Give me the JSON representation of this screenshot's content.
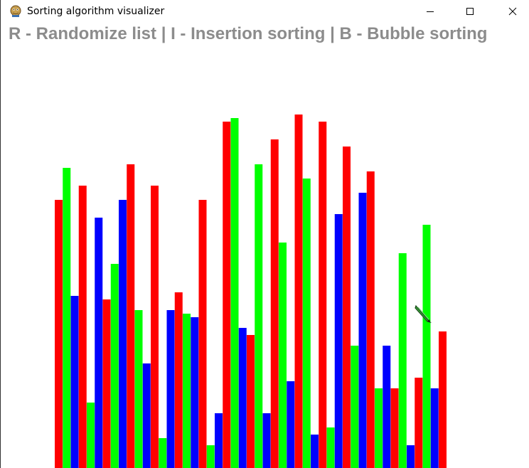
{
  "window": {
    "title": "Sorting algorithm visualizer",
    "icon": "python-snake-icon"
  },
  "controls": {
    "minimize": "minimize-icon",
    "maximize": "maximize-icon",
    "close": "close-icon"
  },
  "instructions": "R - Randomize list | I - Insertion sorting | B - Bubble sorting",
  "colors": {
    "bar_colors": [
      "#ff0000",
      "#00ff00",
      "#0000ff"
    ],
    "instruction_text": "#8c8c8c"
  },
  "cursor": {
    "icon": "pencil-cursor-icon"
  },
  "chart_data": {
    "type": "bar",
    "title": "",
    "xlabel": "",
    "ylabel": "",
    "ylim": [
      0,
      500
    ],
    "color_cycle": [
      "#ff0000",
      "#00ff00",
      "#0000ff"
    ],
    "values": [
      377,
      422,
      242,
      397,
      92,
      352,
      237,
      287,
      377,
      427,
      222,
      147,
      397,
      42,
      222,
      247,
      217,
      212,
      377,
      32,
      77,
      487,
      492,
      197,
      187,
      427,
      77,
      462,
      317,
      122,
      497,
      407,
      47,
      487,
      57,
      357,
      452,
      172,
      387,
      417,
      112,
      172,
      112,
      302,
      32,
      127,
      342,
      112,
      192
    ]
  }
}
